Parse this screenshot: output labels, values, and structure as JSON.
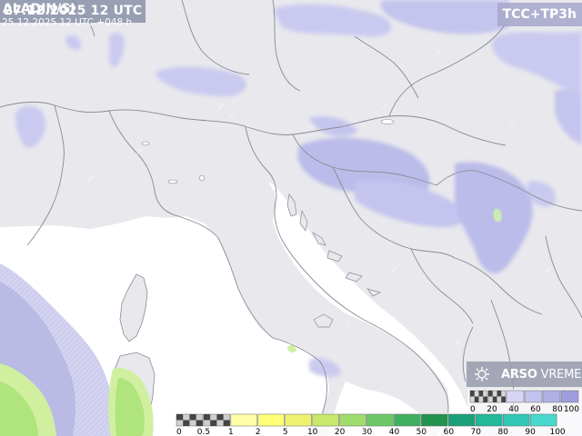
{
  "header": {
    "timestamp": "27.12.2025 12 UTC",
    "product": "TCC+TP3h"
  },
  "model": {
    "name": "ALADIN/SI",
    "run": "25.12.2025 12 UTC +048 h"
  },
  "logo": {
    "brand": "ARSO",
    "suffix": "VREME",
    "icon": "snowflake-cloud-icon"
  },
  "legend_precip": {
    "ticks": [
      "0",
      "0.5",
      "1",
      "2",
      "5",
      "10",
      "20",
      "30",
      "40",
      "50",
      "60",
      "70",
      "80",
      "90",
      "100"
    ],
    "colors": [
      "#cfcfcf",
      "#cfcfcf",
      "#ffffa8",
      "#ffff78",
      "#eef070",
      "#c8e86c",
      "#a0dc6c",
      "#6cc868",
      "#40b060",
      "#229450",
      "#1aa078",
      "#22b89a",
      "#30c8b4",
      "#48d8cc"
    ]
  },
  "legend_cloud": {
    "ticks": [
      "0",
      "20",
      "40",
      "60",
      "80",
      "100"
    ],
    "colors": [
      "#d8d8d8",
      "#d8d8d8",
      "#d6d6f4",
      "#c2c2ee",
      "#b0b0e6",
      "#9e9ede"
    ]
  },
  "colors": {
    "land": "#e8e8ed",
    "sea": "#ffffff",
    "cloud": "#c8c8ee",
    "cloud_dense": "#a6a6e0",
    "precip": "#c8f098",
    "border": "#8a8a96"
  }
}
